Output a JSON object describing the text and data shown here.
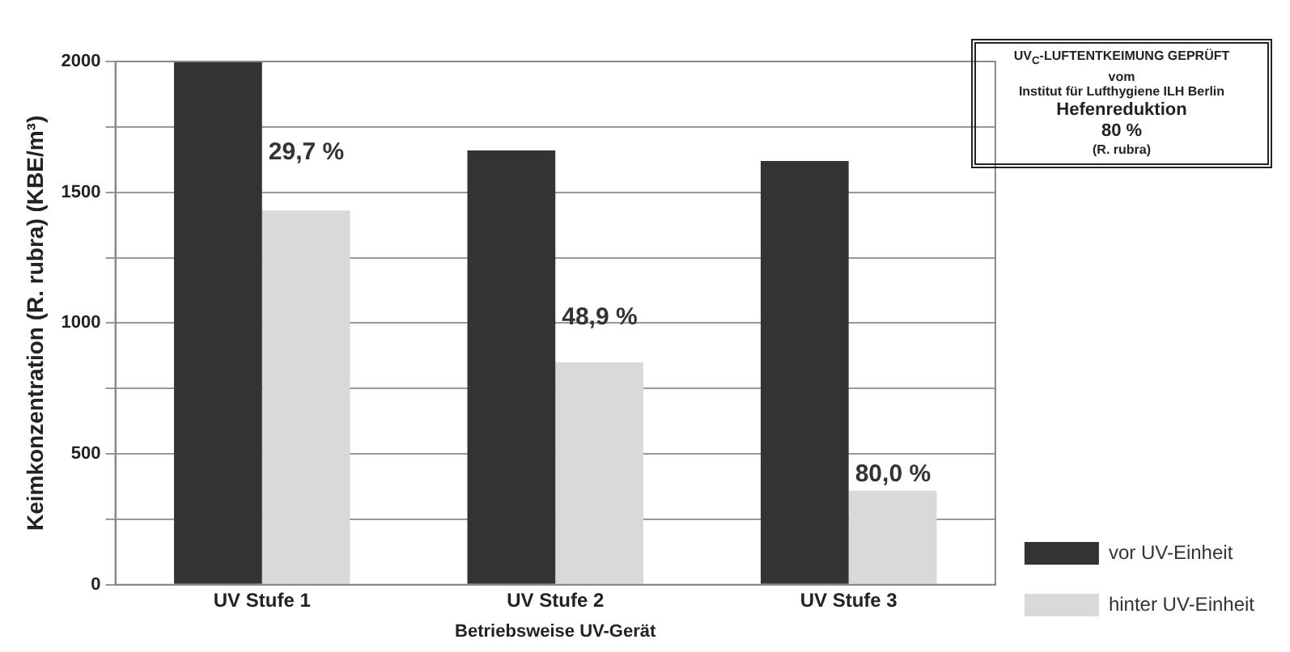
{
  "chart_data": {
    "type": "bar",
    "xlabel": "Betriebsweise UV-Gerät",
    "ylabel": "Keimkonzentration (R. rubra) (KBE/m³)",
    "categories": [
      "UV Stufe 1",
      "UV Stufe 2",
      "UV Stufe 3"
    ],
    "series": [
      {
        "name": "vor UV-Einheit",
        "color": "#333333",
        "values": [
          2000,
          1660,
          1620
        ]
      },
      {
        "name": "hinter UV-Einheit",
        "color": "#d9d9d9",
        "values": [
          1430,
          850,
          360
        ]
      }
    ],
    "ylim": [
      0,
      2000
    ],
    "yticks": [
      0,
      {
        "value": 250,
        "label": null
      },
      500,
      {
        "value": 750,
        "label": null
      },
      1000,
      {
        "value": 1250,
        "label": null
      },
      1500,
      {
        "value": 1750,
        "label": null
      },
      2000
    ],
    "grid": "y",
    "legend": "bottom right",
    "annotations": [
      {
        "text": "29,7 %",
        "x": "UV Stufe 1",
        "y": 1650
      },
      {
        "text": "48,9 %",
        "x": "UV Stufe 2",
        "y": 1020
      },
      {
        "text": "80,0 %",
        "x": "UV Stufe 3",
        "y": 420
      },
      "UV$_{C}$-LUFTENTKEIMUNG GEPRÜFT",
      "vom",
      "Institut für Lufthygiene ILH Berlin",
      "Hefenreduktion",
      "80 %",
      "(R. rubra)"
    ]
  }
}
